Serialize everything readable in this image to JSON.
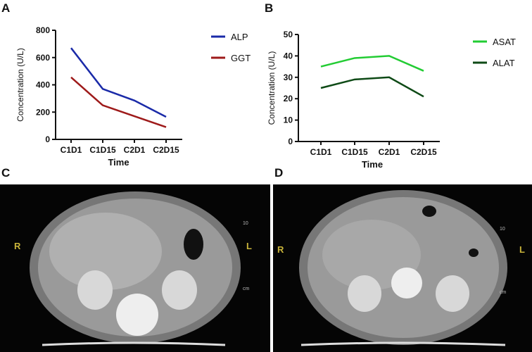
{
  "panels": {
    "a": "A",
    "b": "B",
    "c": "C",
    "d": "D"
  },
  "chart_data": [
    {
      "type": "line",
      "panel": "A",
      "categories": [
        "C1D1",
        "C1D15",
        "C2D1",
        "C2D15"
      ],
      "xlabel": "Time",
      "ylabel": "Concentration (U/L)",
      "ylim": [
        0,
        800
      ],
      "yticks": [
        0,
        200,
        400,
        600,
        800
      ],
      "legend": "right",
      "series": [
        {
          "name": "ALP",
          "color": "#1a2aa8",
          "values": [
            670,
            370,
            285,
            165
          ]
        },
        {
          "name": "GGT",
          "color": "#9e1a1a",
          "values": [
            455,
            250,
            170,
            90
          ]
        }
      ]
    },
    {
      "type": "line",
      "panel": "B",
      "categories": [
        "C1D1",
        "C1D15",
        "C2D1",
        "C2D15"
      ],
      "xlabel": "Time",
      "ylabel": "Concentration (U/L)",
      "ylim": [
        0,
        50
      ],
      "yticks": [
        0,
        10,
        20,
        30,
        40,
        50
      ],
      "legend": "right",
      "series": [
        {
          "name": "ASAT",
          "color": "#22cc33",
          "values": [
            35,
            39,
            40,
            33
          ]
        },
        {
          "name": "ALAT",
          "color": "#0e4a16",
          "values": [
            25,
            29,
            30,
            21
          ]
        }
      ]
    }
  ],
  "ct": {
    "right": "R",
    "left": "L",
    "scale_top": "10",
    "scale_unit": "cm"
  }
}
